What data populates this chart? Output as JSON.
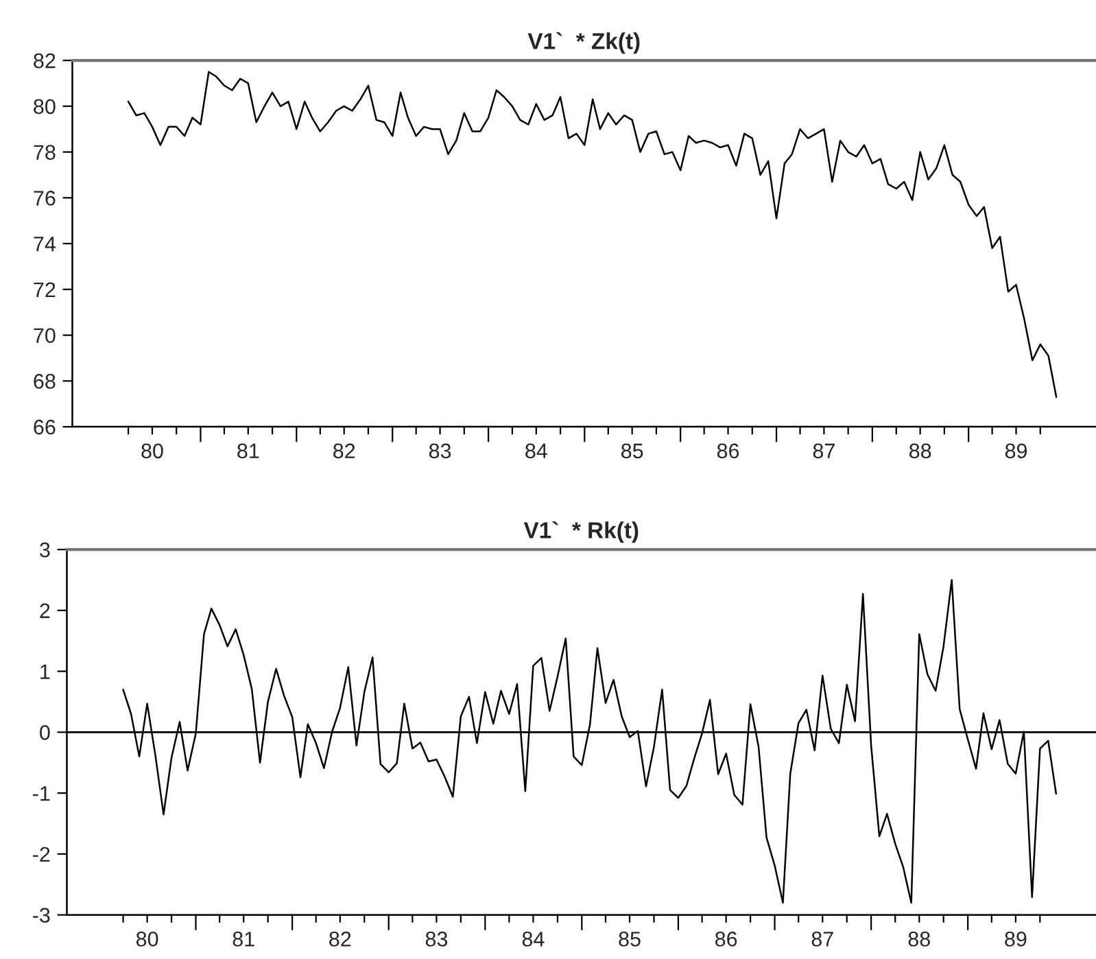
{
  "chart_data": [
    {
      "type": "line",
      "title": "V1`  * Zk(t)",
      "x": [
        "1980-04",
        "1980-05",
        "1980-06",
        "1980-07",
        "1980-08",
        "1980-09",
        "1980-10",
        "1980-11",
        "1980-12",
        "1981-01",
        "1981-02",
        "1981-03",
        "1981-04",
        "1981-05",
        "1981-06",
        "1981-07",
        "1981-08",
        "1981-09",
        "1981-10",
        "1981-11",
        "1981-12",
        "1982-01",
        "1982-02",
        "1982-03",
        "1982-04",
        "1982-05",
        "1982-06",
        "1982-07",
        "1982-08",
        "1982-09",
        "1982-10",
        "1982-11",
        "1982-12",
        "1983-01",
        "1983-02",
        "1983-03",
        "1983-04",
        "1983-05",
        "1983-06",
        "1983-07",
        "1983-08",
        "1983-09",
        "1983-10",
        "1983-11",
        "1983-12",
        "1984-01",
        "1984-02",
        "1984-03",
        "1984-04",
        "1984-05",
        "1984-06",
        "1984-07",
        "1984-08",
        "1984-09",
        "1984-10",
        "1984-11",
        "1984-12",
        "1985-01",
        "1985-02",
        "1985-03",
        "1985-04",
        "1985-05",
        "1985-06",
        "1985-07",
        "1985-08",
        "1985-09",
        "1985-10",
        "1985-11",
        "1985-12",
        "1986-01",
        "1986-02",
        "1986-03",
        "1986-04",
        "1986-05",
        "1986-06",
        "1986-07",
        "1986-08",
        "1986-09",
        "1986-10",
        "1986-11",
        "1986-12",
        "1987-01",
        "1987-02",
        "1987-03",
        "1987-04",
        "1987-05",
        "1987-06",
        "1987-07",
        "1987-08",
        "1987-09",
        "1987-10",
        "1987-11",
        "1987-12",
        "1988-01",
        "1988-02",
        "1988-03",
        "1988-04",
        "1988-05",
        "1988-06",
        "1988-07",
        "1988-08",
        "1988-09",
        "1988-10",
        "1988-11",
        "1988-12",
        "1989-01",
        "1989-02",
        "1989-03",
        "1989-04",
        "1989-05",
        "1989-06",
        "1989-07",
        "1989-08",
        "1989-09",
        "1989-10",
        "1989-11",
        "1989-12"
      ],
      "series": [
        {
          "color": "#000000",
          "values": [
            80.2,
            79.6,
            79.7,
            79.1,
            78.3,
            79.1,
            79.1,
            78.7,
            79.5,
            79.2,
            81.5,
            81.3,
            80.9,
            80.7,
            81.2,
            81.0,
            79.3,
            80.0,
            80.6,
            80.0,
            80.2,
            79.0,
            80.2,
            79.5,
            78.9,
            79.3,
            79.8,
            80.0,
            79.8,
            80.3,
            80.9,
            79.4,
            79.3,
            78.7,
            80.6,
            79.5,
            78.7,
            79.1,
            79.0,
            79.0,
            77.9,
            78.5,
            79.7,
            78.9,
            78.9,
            79.5,
            80.7,
            80.4,
            80.0,
            79.4,
            79.2,
            80.1,
            79.4,
            79.6,
            80.4,
            78.6,
            78.8,
            78.3,
            80.3,
            79.0,
            79.7,
            79.2,
            79.6,
            79.4,
            78.0,
            78.8,
            78.9,
            77.9,
            78.0,
            77.2,
            78.7,
            78.4,
            78.5,
            78.4,
            78.2,
            78.3,
            77.4,
            78.8,
            78.6,
            77.0,
            77.6,
            75.1,
            77.5,
            77.9,
            79.0,
            78.6,
            78.8,
            79.0,
            76.7,
            78.5,
            78.0,
            77.8,
            78.3,
            77.5,
            77.7,
            76.6,
            76.4,
            76.7,
            75.9,
            78.0,
            76.8,
            77.3,
            78.3,
            77.0,
            76.7,
            75.7,
            75.2,
            75.6,
            73.8,
            74.3,
            71.9,
            72.2,
            70.7,
            68.9,
            69.6,
            69.1,
            67.3
          ]
        }
      ],
      "xlim": [
        "1979-09",
        "1990-05"
      ],
      "ylim": [
        66,
        82
      ],
      "yticks": [
        66,
        68,
        70,
        72,
        74,
        76,
        78,
        80,
        82
      ],
      "xticks": [
        {
          "value": "1980-04-01",
          "label": null
        },
        {
          "value": "1980-07-01",
          "label": "80"
        },
        {
          "value": "1980-10-01",
          "label": null
        },
        {
          "value": "1981-01-01",
          "label": null
        },
        {
          "value": "1981-04-01",
          "label": null
        },
        {
          "value": "1981-07-01",
          "label": "81"
        },
        {
          "value": "1981-10-01",
          "label": null
        },
        {
          "value": "1982-01-01",
          "label": null
        },
        {
          "value": "1982-04-01",
          "label": null
        },
        {
          "value": "1982-07-01",
          "label": "82"
        },
        {
          "value": "1982-10-01",
          "label": null
        },
        {
          "value": "1983-01-01",
          "label": null
        },
        {
          "value": "1983-04-01",
          "label": null
        },
        {
          "value": "1983-07-01",
          "label": "83"
        },
        {
          "value": "1983-10-01",
          "label": null
        },
        {
          "value": "1984-01-01",
          "label": null
        },
        {
          "value": "1984-04-01",
          "label": null
        },
        {
          "value": "1984-07-01",
          "label": "84"
        },
        {
          "value": "1984-10-01",
          "label": null
        },
        {
          "value": "1985-01-01",
          "label": null
        },
        {
          "value": "1985-04-01",
          "label": null
        },
        {
          "value": "1985-07-01",
          "label": "85"
        },
        {
          "value": "1985-10-01",
          "label": null
        },
        {
          "value": "1986-01-01",
          "label": null
        },
        {
          "value": "1986-04-01",
          "label": null
        },
        {
          "value": "1986-07-01",
          "label": "86"
        },
        {
          "value": "1986-10-01",
          "label": null
        },
        {
          "value": "1987-01-01",
          "label": null
        },
        {
          "value": "1987-04-01",
          "label": null
        },
        {
          "value": "1987-07-01",
          "label": "87"
        },
        {
          "value": "1987-10-01",
          "label": null
        },
        {
          "value": "1988-01-01",
          "label": null
        },
        {
          "value": "1988-04-01",
          "label": null
        },
        {
          "value": "1988-07-01",
          "label": "88"
        },
        {
          "value": "1988-10-01",
          "label": null
        },
        {
          "value": "1989-01-01",
          "label": null
        },
        {
          "value": "1989-04-01",
          "label": null
        },
        {
          "value": "1989-07-01",
          "label": "89"
        },
        {
          "value": "1989-10-01",
          "label": null
        }
      ],
      "grid": false,
      "legend": false
    },
    {
      "type": "line",
      "title": "V1`  * Rk(t)",
      "x": [
        "1980-04",
        "1980-05",
        "1980-06",
        "1980-07",
        "1980-08",
        "1980-09",
        "1980-10",
        "1980-11",
        "1980-12",
        "1981-01",
        "1981-02",
        "1981-03",
        "1981-04",
        "1981-05",
        "1981-06",
        "1981-07",
        "1981-08",
        "1981-09",
        "1981-10",
        "1981-11",
        "1981-12",
        "1982-01",
        "1982-02",
        "1982-03",
        "1982-04",
        "1982-05",
        "1982-06",
        "1982-07",
        "1982-08",
        "1982-09",
        "1982-10",
        "1982-11",
        "1982-12",
        "1983-01",
        "1983-02",
        "1983-03",
        "1983-04",
        "1983-05",
        "1983-06",
        "1983-07",
        "1983-08",
        "1983-09",
        "1983-10",
        "1983-11",
        "1983-12",
        "1984-01",
        "1984-02",
        "1984-03",
        "1984-04",
        "1984-05",
        "1984-06",
        "1984-07",
        "1984-08",
        "1984-09",
        "1984-10",
        "1984-11",
        "1984-12",
        "1985-01",
        "1985-02",
        "1985-03",
        "1985-04",
        "1985-05",
        "1985-06",
        "1985-07",
        "1985-08",
        "1985-09",
        "1985-10",
        "1985-11",
        "1985-12",
        "1986-01",
        "1986-02",
        "1986-03",
        "1986-04",
        "1986-05",
        "1986-06",
        "1986-07",
        "1986-08",
        "1986-09",
        "1986-10",
        "1986-11",
        "1986-12",
        "1987-01",
        "1987-02",
        "1987-03",
        "1987-04",
        "1987-05",
        "1987-06",
        "1987-07",
        "1987-08",
        "1987-09",
        "1987-10",
        "1987-11",
        "1987-12",
        "1988-01",
        "1988-02",
        "1988-03",
        "1988-04",
        "1988-05",
        "1988-06",
        "1988-07",
        "1988-08",
        "1988-09",
        "1988-10",
        "1988-11",
        "1988-12",
        "1989-01",
        "1989-02",
        "1989-03",
        "1989-04",
        "1989-05",
        "1989-06",
        "1989-07",
        "1989-08",
        "1989-09",
        "1989-10",
        "1989-11",
        "1989-12"
      ],
      "series": [
        {
          "color": "#000000",
          "values": [
            0.7,
            0.3,
            -0.4,
            0.47,
            -0.38,
            -1.35,
            -0.42,
            0.17,
            -0.63,
            -0.02,
            1.61,
            2.03,
            1.76,
            1.41,
            1.69,
            1.27,
            0.71,
            -0.5,
            0.5,
            1.04,
            0.6,
            0.25,
            -0.74,
            0.13,
            -0.18,
            -0.59,
            0.01,
            0.4,
            1.07,
            -0.22,
            0.66,
            1.23,
            -0.52,
            -0.66,
            -0.51,
            0.47,
            -0.27,
            -0.17,
            -0.48,
            -0.45,
            -0.73,
            -1.06,
            0.26,
            0.58,
            -0.18,
            0.66,
            0.14,
            0.68,
            0.3,
            0.79,
            -0.97,
            1.09,
            1.22,
            0.35,
            0.91,
            1.54,
            -0.4,
            -0.54,
            0.13,
            1.38,
            0.48,
            0.86,
            0.26,
            -0.08,
            0.02,
            -0.89,
            -0.24,
            0.7,
            -0.95,
            -1.08,
            -0.88,
            -0.45,
            -0.02,
            0.53,
            -0.69,
            -0.35,
            -1.03,
            -1.19,
            0.46,
            -0.24,
            -1.73,
            -2.19,
            -2.8,
            -0.68,
            0.15,
            0.37,
            -0.3,
            0.93,
            0.06,
            -0.18,
            0.78,
            0.18,
            2.27,
            -0.22,
            -1.71,
            -1.34,
            -1.83,
            -2.21,
            -2.8,
            1.61,
            0.95,
            0.68,
            1.41,
            2.5,
            0.38,
            -0.12,
            -0.6,
            0.31,
            -0.28,
            0.2,
            -0.52,
            -0.68,
            0.01,
            -2.71,
            -0.27,
            -0.14,
            -1.01
          ]
        }
      ],
      "xlim": [
        "1979-09",
        "1990-05"
      ],
      "ylim": [
        -3,
        3
      ],
      "yticks": [
        -3,
        -2,
        -1,
        0,
        1,
        2,
        3
      ],
      "xticks": [
        {
          "value": "1980-04-01",
          "label": null
        },
        {
          "value": "1980-07-01",
          "label": "80"
        },
        {
          "value": "1980-10-01",
          "label": null
        },
        {
          "value": "1981-01-01",
          "label": null
        },
        {
          "value": "1981-04-01",
          "label": null
        },
        {
          "value": "1981-07-01",
          "label": "81"
        },
        {
          "value": "1981-10-01",
          "label": null
        },
        {
          "value": "1982-01-01",
          "label": null
        },
        {
          "value": "1982-04-01",
          "label": null
        },
        {
          "value": "1982-07-01",
          "label": "82"
        },
        {
          "value": "1982-10-01",
          "label": null
        },
        {
          "value": "1983-01-01",
          "label": null
        },
        {
          "value": "1983-04-01",
          "label": null
        },
        {
          "value": "1983-07-01",
          "label": "83"
        },
        {
          "value": "1983-10-01",
          "label": null
        },
        {
          "value": "1984-01-01",
          "label": null
        },
        {
          "value": "1984-04-01",
          "label": null
        },
        {
          "value": "1984-07-01",
          "label": "84"
        },
        {
          "value": "1984-10-01",
          "label": null
        },
        {
          "value": "1985-01-01",
          "label": null
        },
        {
          "value": "1985-04-01",
          "label": null
        },
        {
          "value": "1985-07-01",
          "label": "85"
        },
        {
          "value": "1985-10-01",
          "label": null
        },
        {
          "value": "1986-01-01",
          "label": null
        },
        {
          "value": "1986-04-01",
          "label": null
        },
        {
          "value": "1986-07-01",
          "label": "86"
        },
        {
          "value": "1986-10-01",
          "label": null
        },
        {
          "value": "1987-01-01",
          "label": null
        },
        {
          "value": "1987-04-01",
          "label": null
        },
        {
          "value": "1987-07-01",
          "label": "87"
        },
        {
          "value": "1987-10-01",
          "label": null
        },
        {
          "value": "1988-01-01",
          "label": null
        },
        {
          "value": "1988-04-01",
          "label": null
        },
        {
          "value": "1988-07-01",
          "label": "88"
        },
        {
          "value": "1988-10-01",
          "label": null
        },
        {
          "value": "1989-01-01",
          "label": null
        },
        {
          "value": "1989-04-01",
          "label": null
        },
        {
          "value": "1989-07-01",
          "label": "89"
        },
        {
          "value": "1989-10-01",
          "label": null
        }
      ],
      "ref_lines": [
        {
          "axis": "y",
          "value": 0,
          "color": "#000000"
        }
      ],
      "grid": false,
      "legend": false
    }
  ]
}
